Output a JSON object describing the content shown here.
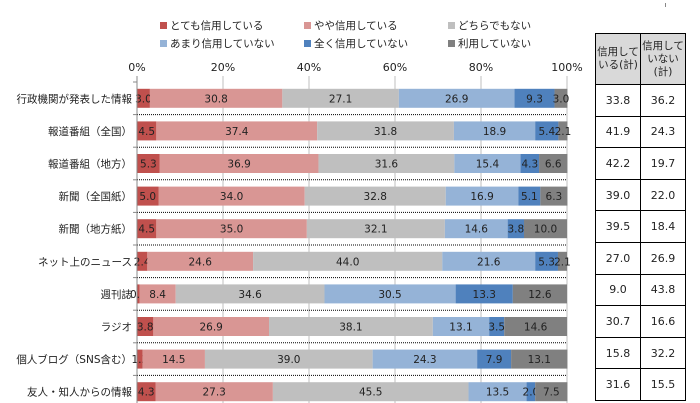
{
  "chart_data": {
    "type": "bar",
    "orientation": "horizontal",
    "stacked": "percent",
    "title": "",
    "xlabel": "",
    "ylabel": "",
    "xlim": [
      0,
      100
    ],
    "x_ticks": [
      "0%",
      "20%",
      "40%",
      "60%",
      "80%",
      "100%"
    ],
    "grid": true,
    "legend_position": "top",
    "categories": [
      "行政機関が発表した情報",
      "報道番組（全国）",
      "報道番組（地方）",
      "新聞（全国紙）",
      "新聞（地方紙）",
      "ネット上のニュース",
      "週刊誌",
      "ラジオ",
      "個人ブログ（SNS含む）",
      "友人・知人からの情報"
    ],
    "series": [
      {
        "name": "とても信用している",
        "color": "#c0504d",
        "values": [
          3.0,
          4.5,
          5.3,
          5.0,
          4.5,
          2.4,
          0.6,
          3.8,
          1.3,
          4.3
        ]
      },
      {
        "name": "やや信用している",
        "color": "#d99694",
        "values": [
          30.8,
          37.4,
          36.9,
          34.0,
          35.0,
          24.6,
          8.4,
          26.9,
          14.5,
          27.3
        ]
      },
      {
        "name": "どちらでもない",
        "color": "#bfbfbf",
        "values": [
          27.1,
          31.8,
          31.6,
          32.8,
          32.1,
          44.0,
          34.6,
          38.1,
          39.0,
          45.5
        ]
      },
      {
        "name": "あまり信用していない",
        "color": "#95b3d7",
        "values": [
          26.9,
          18.9,
          15.4,
          16.9,
          14.6,
          21.6,
          30.5,
          13.1,
          24.3,
          13.5
        ]
      },
      {
        "name": "全く信用していない",
        "color": "#4f81bd",
        "values": [
          9.3,
          5.4,
          4.3,
          5.1,
          3.8,
          5.3,
          13.3,
          3.5,
          7.9,
          2.0
        ]
      },
      {
        "name": "利用していない",
        "color": "#808080",
        "values": [
          3.0,
          2.1,
          6.6,
          6.3,
          10.0,
          2.1,
          12.6,
          14.6,
          13.1,
          7.5
        ]
      }
    ]
  },
  "side_table": {
    "headers": [
      "信用して\nいる(計)",
      "信用して\nいない\n(計)"
    ],
    "header_lines": [
      [
        "信用して",
        "いる(計)"
      ],
      [
        "信用して",
        "いない",
        "(計)"
      ]
    ],
    "rows": [
      [
        "33.8",
        "36.2"
      ],
      [
        "41.9",
        "24.3"
      ],
      [
        "42.2",
        "19.7"
      ],
      [
        "39.0",
        "22.0"
      ],
      [
        "39.5",
        "18.4"
      ],
      [
        "27.0",
        "26.9"
      ],
      [
        "9.0",
        "43.8"
      ],
      [
        "30.7",
        "16.6"
      ],
      [
        "15.8",
        "32.2"
      ],
      [
        "31.6",
        "15.5"
      ]
    ]
  }
}
